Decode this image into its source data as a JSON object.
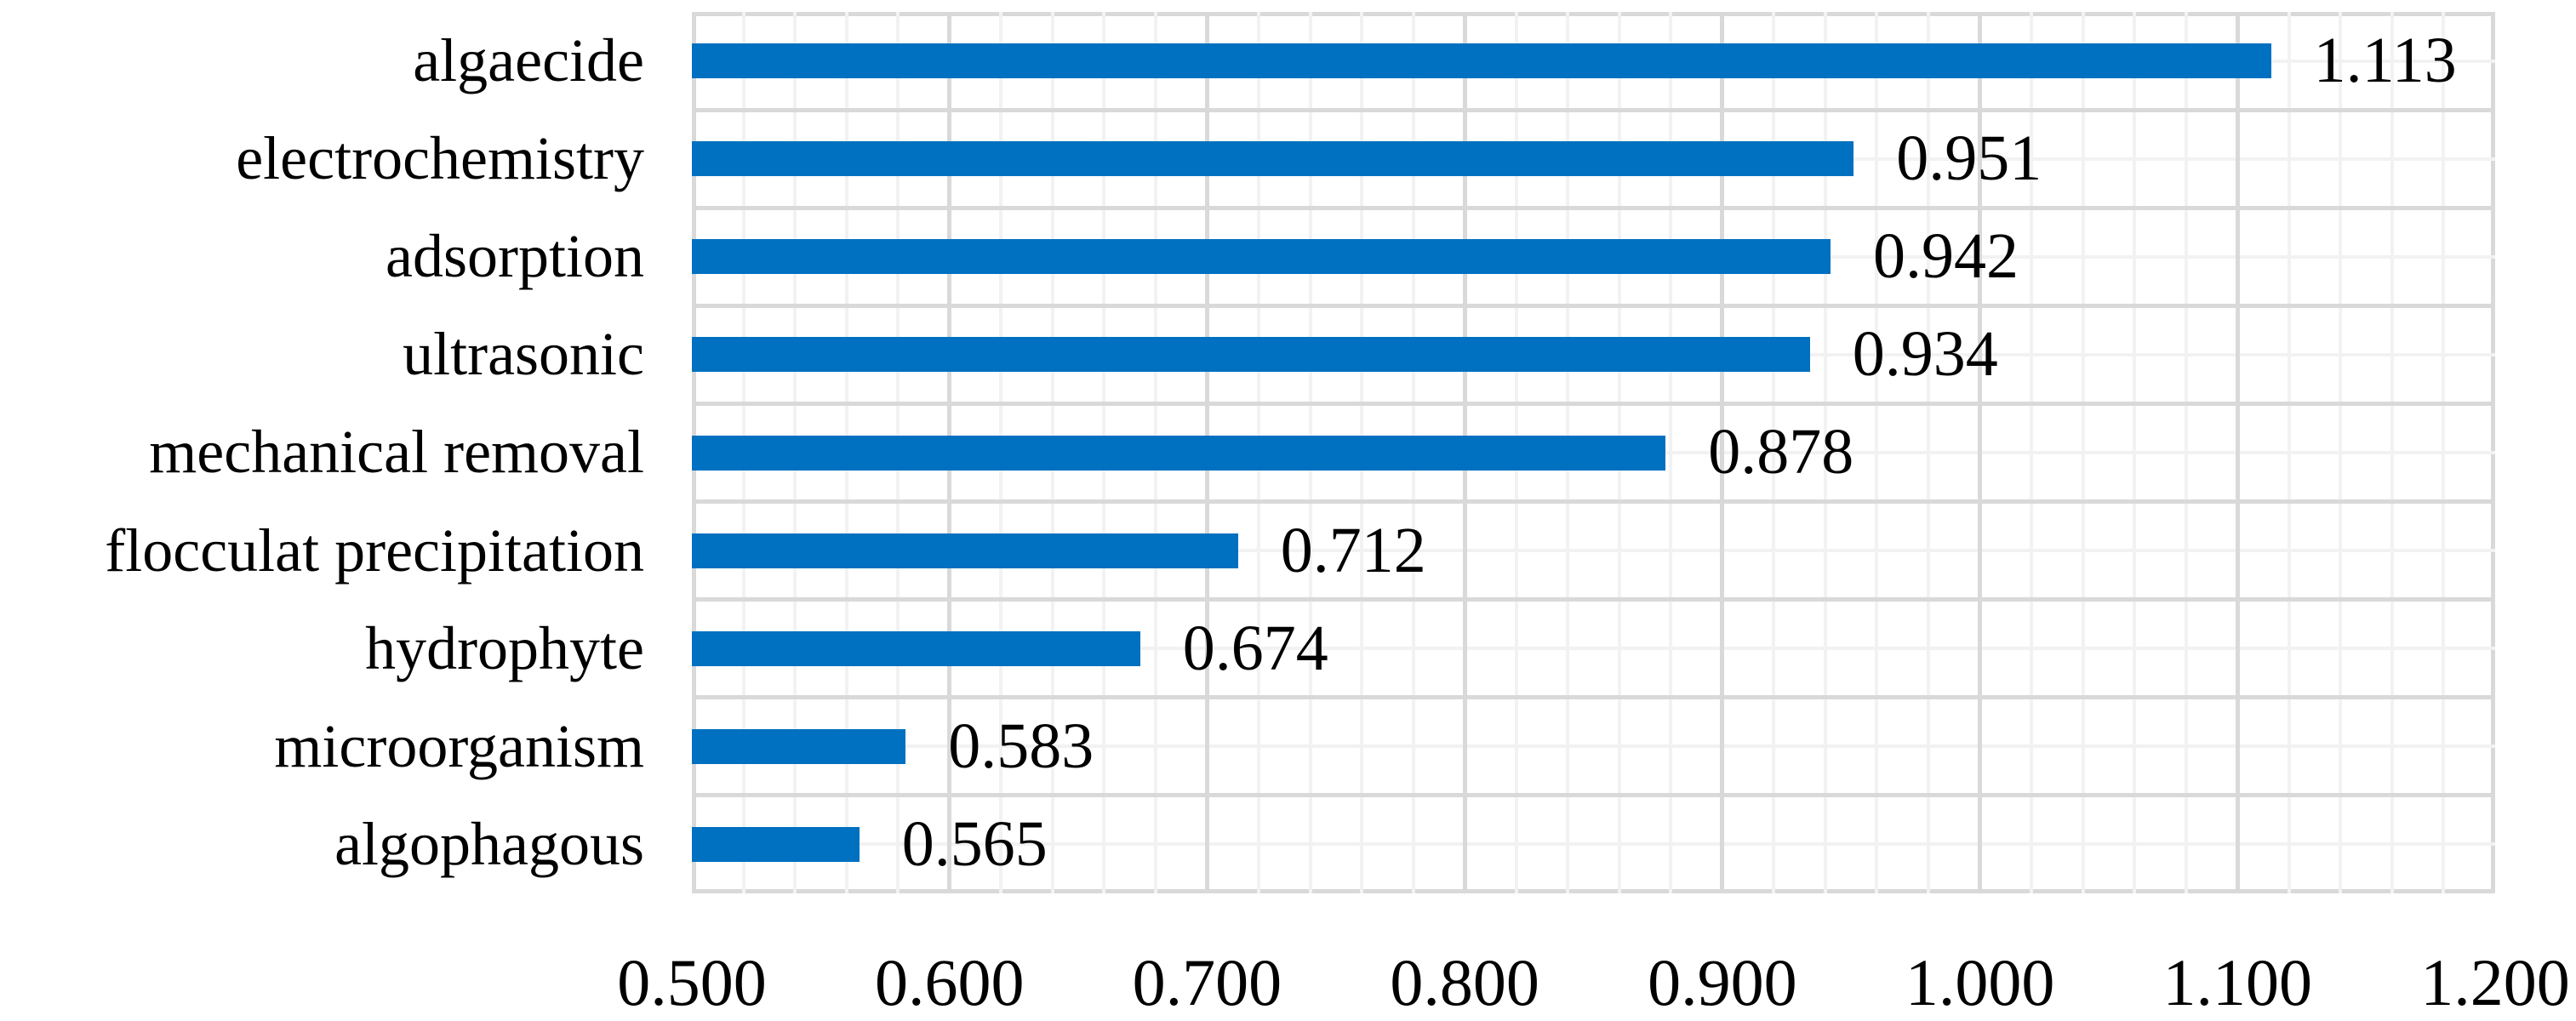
{
  "chart_data": {
    "type": "bar",
    "orientation": "horizontal",
    "title": "",
    "xlabel": "",
    "ylabel": "",
    "categories": [
      "algaecide",
      "electrochemistry",
      "adsorption",
      "ultrasonic",
      "mechanical removal",
      "flocculat precipitation",
      "hydrophyte",
      "microorganism",
      "algophagous"
    ],
    "values": [
      1.113,
      0.951,
      0.942,
      0.934,
      0.878,
      0.712,
      0.674,
      0.583,
      0.565
    ],
    "data_labels": [
      "1.113",
      "0.951",
      "0.942",
      "0.934",
      "0.878",
      "0.712",
      "0.674",
      "0.583",
      "0.565"
    ],
    "xlim": [
      0.5,
      1.2
    ],
    "x_major_step": 0.1,
    "x_minor_step": 0.02,
    "x_tick_labels": [
      "0.500",
      "0.600",
      "0.700",
      "0.800",
      "0.900",
      "1.000",
      "1.100",
      "1.200"
    ],
    "legend": "none",
    "grid": "major-and-minor",
    "colors": {
      "bar": "#0070C0",
      "gridline_major": "#D9D9D9",
      "gridline_minor": "#F2F2F2",
      "plot_border": "#D9D9D9",
      "text": "#000000",
      "background": "#FFFFFF"
    }
  }
}
